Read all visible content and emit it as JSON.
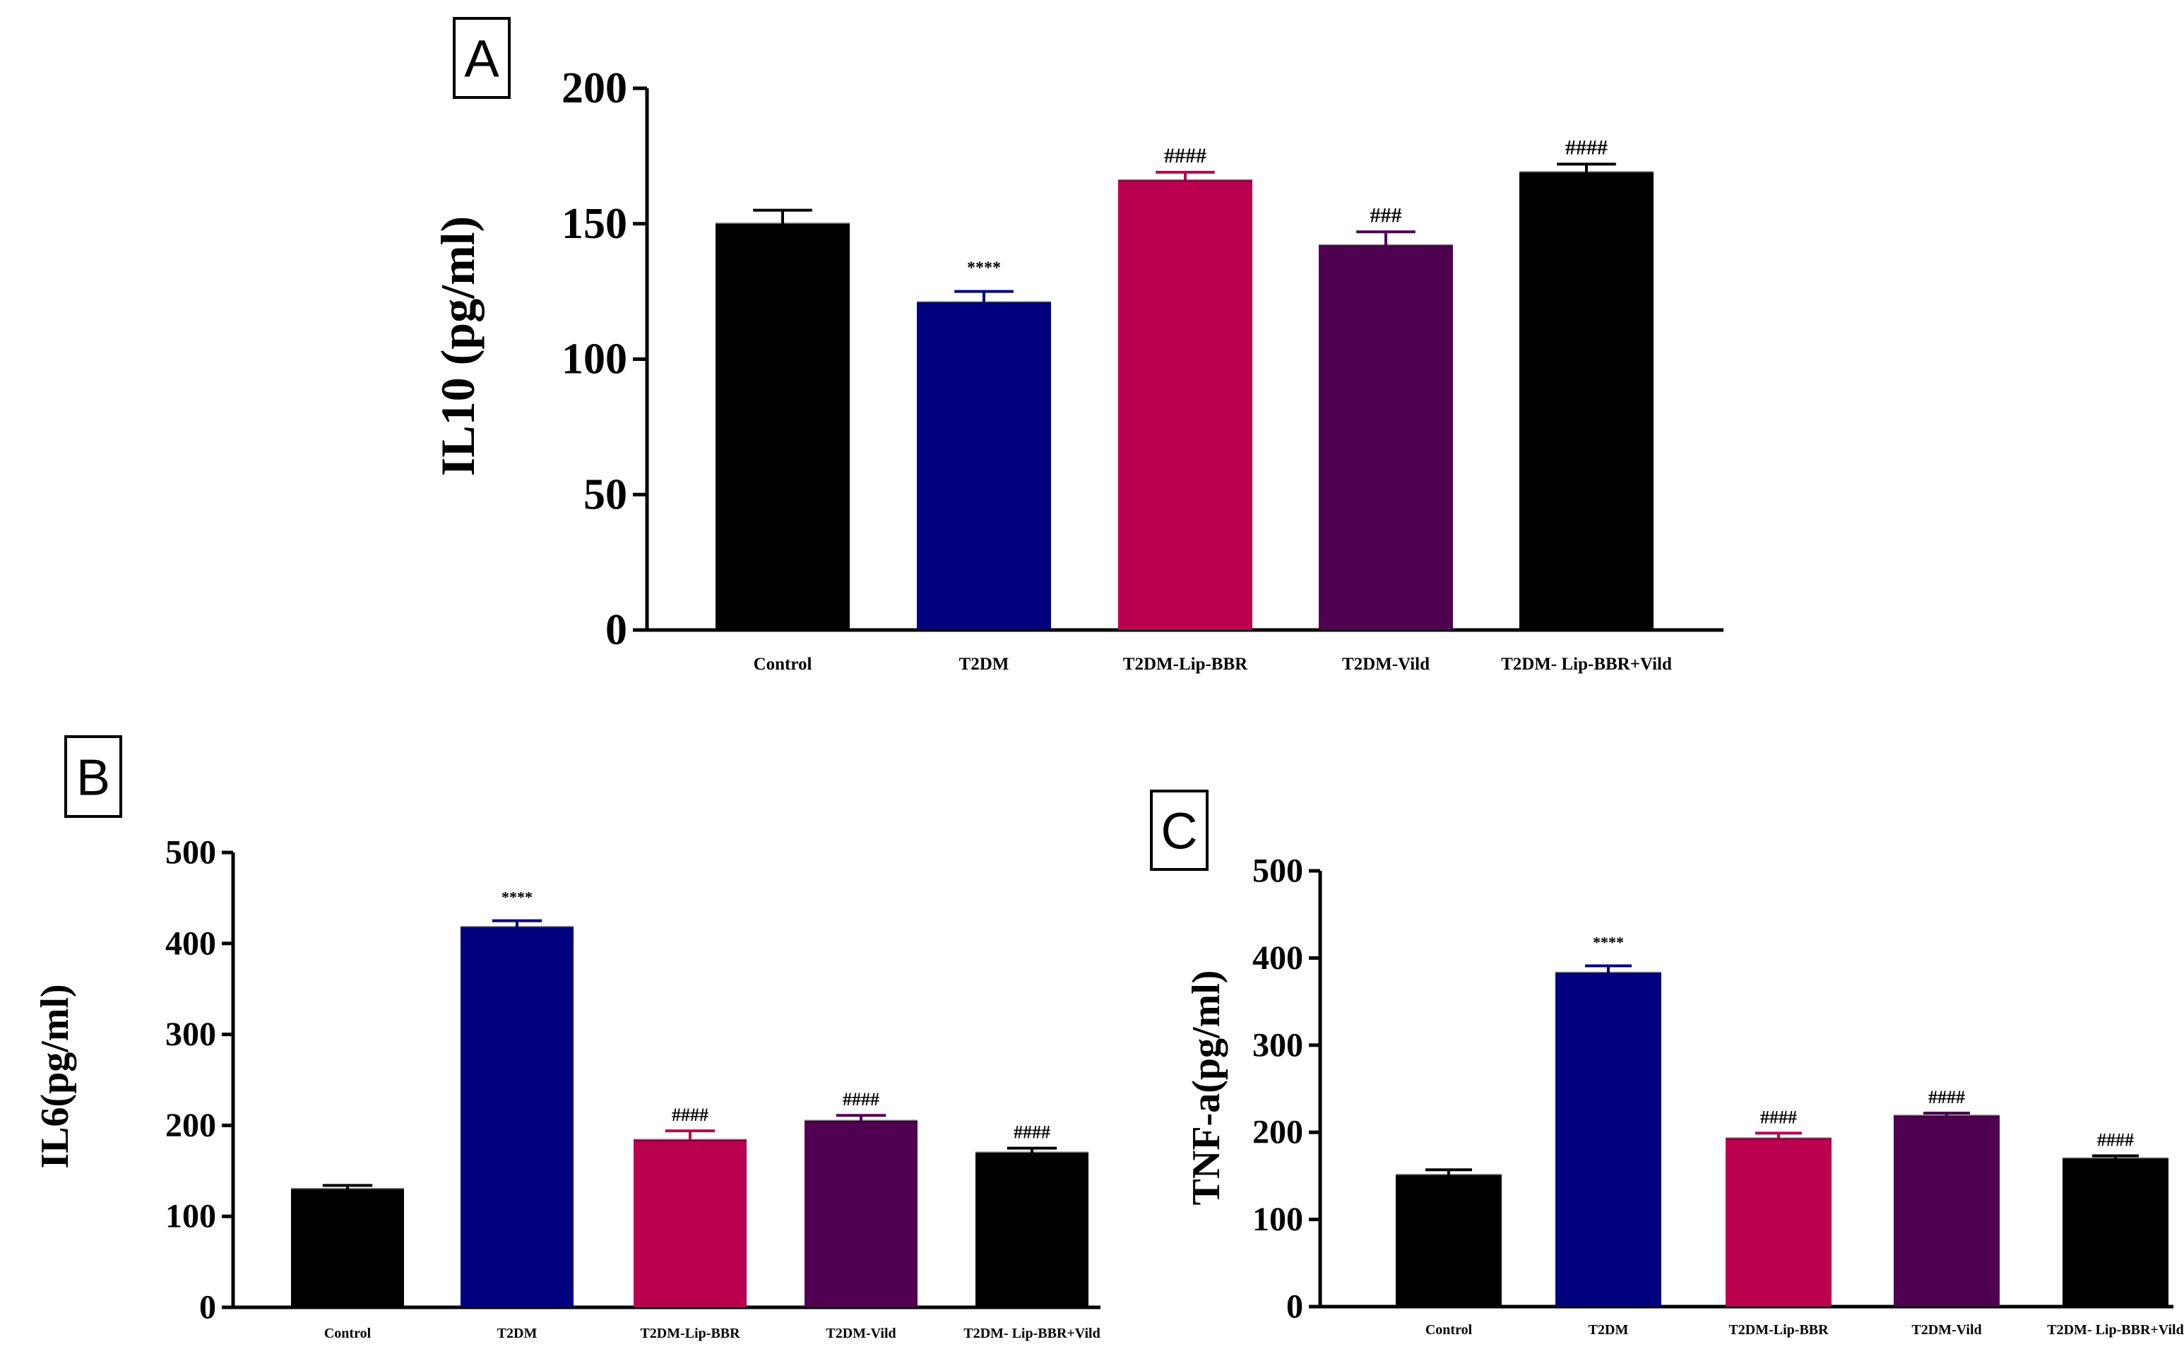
{
  "chart_data": [
    {
      "type": "bar",
      "panel": "A",
      "ylabel": "IL10 (pg/ml)",
      "ylim": [
        0,
        200
      ],
      "yticks": [
        0,
        50,
        100,
        150,
        200
      ],
      "categories": [
        "Control",
        "T2DM",
        "T2DM-Lip-BBR",
        "T2DM-Vild",
        "T2DM- Lip-BBR+Vild"
      ],
      "values": [
        150,
        121,
        166,
        142,
        169
      ],
      "errors": [
        5,
        4,
        3,
        5,
        3
      ],
      "annotations": [
        "",
        "****",
        "####",
        "###",
        "####"
      ],
      "colors": [
        "#000000",
        "#010180",
        "#bb0050",
        "#500050",
        "#000000"
      ]
    },
    {
      "type": "bar",
      "panel": "B",
      "ylabel": "IL6(pg/ml)",
      "ylim": [
        0,
        500
      ],
      "yticks": [
        0,
        100,
        200,
        300,
        400,
        500
      ],
      "categories": [
        "Control",
        "T2DM",
        "T2DM-Lip-BBR",
        "T2DM-Vild",
        "T2DM- Lip-BBR+Vild"
      ],
      "values": [
        130,
        418,
        184,
        205,
        170
      ],
      "errors": [
        4,
        7,
        10,
        6,
        5
      ],
      "annotations": [
        "",
        "****",
        "####",
        "####",
        "####"
      ],
      "colors": [
        "#000000",
        "#010180",
        "#bb0050",
        "#500050",
        "#000000"
      ]
    },
    {
      "type": "bar",
      "panel": "C",
      "ylabel": "TNF-a(pg/ml)",
      "ylim": [
        0,
        500
      ],
      "yticks": [
        0,
        100,
        200,
        300,
        400,
        500
      ],
      "categories": [
        "Control",
        "T2DM",
        "T2DM-Lip-BBR",
        "T2DM-Vild",
        "T2DM- Lip-BBR+Vild"
      ],
      "values": [
        151,
        383,
        193,
        219,
        170
      ],
      "errors": [
        6,
        8,
        6,
        3,
        3
      ],
      "annotations": [
        "",
        "****",
        "####",
        "####",
        "####"
      ],
      "colors": [
        "#000000",
        "#010180",
        "#bb0050",
        "#500050",
        "#000000"
      ]
    }
  ]
}
